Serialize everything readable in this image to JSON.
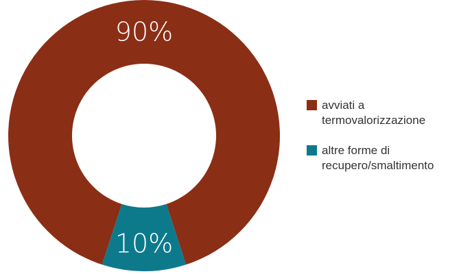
{
  "chart_data": {
    "type": "pie",
    "variant": "donut",
    "categories": [
      "avviati a termovalorizzazione",
      "altre forme di recupero/smaltimento"
    ],
    "values": [
      90,
      10
    ],
    "slice_labels": [
      "90%",
      "10%"
    ],
    "colors": [
      "#8B2E16",
      "#0D7A8C"
    ],
    "legend": {
      "placement": "right",
      "lines": [
        [
          "avviati a",
          "termovalorizzazione"
        ],
        [
          "altre forme di",
          "recupero/smaltimento"
        ]
      ]
    }
  }
}
